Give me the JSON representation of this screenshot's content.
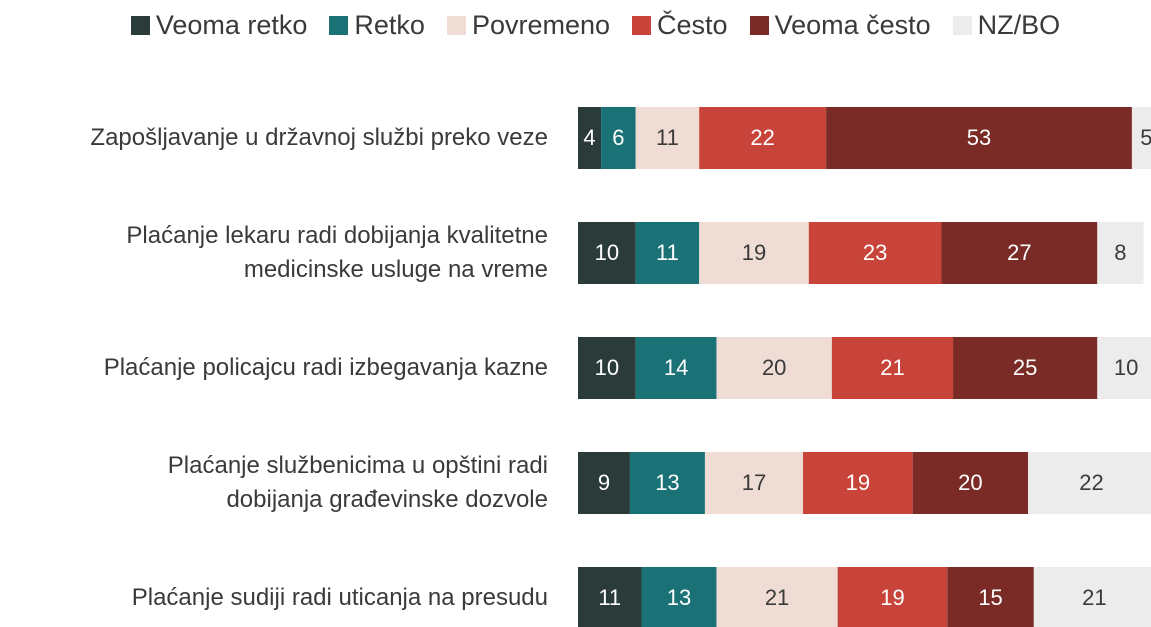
{
  "chart_data": {
    "type": "stacked-bar-horizontal",
    "categories": [
      "Zapošljavanje u državnoj službi preko veze",
      "Plaćanje lekaru radi dobijanja kvalitetne\nmedicinske usluge na vreme",
      "Plaćanje policajcu radi izbegavanja kazne",
      "Plaćanje službenicima u opštini radi\ndobijanja građevinske dozvole",
      "Plaćanje sudiji radi uticanja na presudu"
    ],
    "series": [
      {
        "name": "Veoma retko",
        "color": "#2b3b3a",
        "values": [
          4,
          10,
          10,
          9,
          11
        ]
      },
      {
        "name": "Retko",
        "color": "#1a7276",
        "values": [
          6,
          11,
          14,
          13,
          13
        ]
      },
      {
        "name": "Povremeno",
        "color": "#efdcd4",
        "values": [
          11,
          19,
          20,
          17,
          21
        ]
      },
      {
        "name": "Često",
        "color": "#c8443a",
        "values": [
          22,
          23,
          21,
          19,
          19
        ]
      },
      {
        "name": "Veoma često",
        "color": "#7a2b25",
        "values": [
          53,
          27,
          25,
          20,
          15
        ]
      },
      {
        "name": "NZ/BO",
        "color": "#ececec",
        "values": [
          5,
          8,
          10,
          22,
          21
        ]
      }
    ],
    "xlim": [
      0,
      100
    ],
    "legend": "top"
  }
}
